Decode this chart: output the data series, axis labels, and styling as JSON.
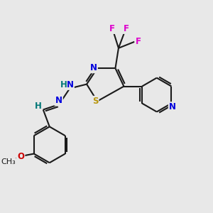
{
  "bg_color": "#e8e8e8",
  "bond_color": "#1a1a1a",
  "N_color": "#0000dd",
  "S_color": "#b8960c",
  "O_color": "#cc0000",
  "F_color": "#dd00cc",
  "H_color": "#007777",
  "font_size": 8.5,
  "lw": 1.5,
  "xlim": [
    0,
    10
  ],
  "ylim": [
    0,
    10
  ]
}
